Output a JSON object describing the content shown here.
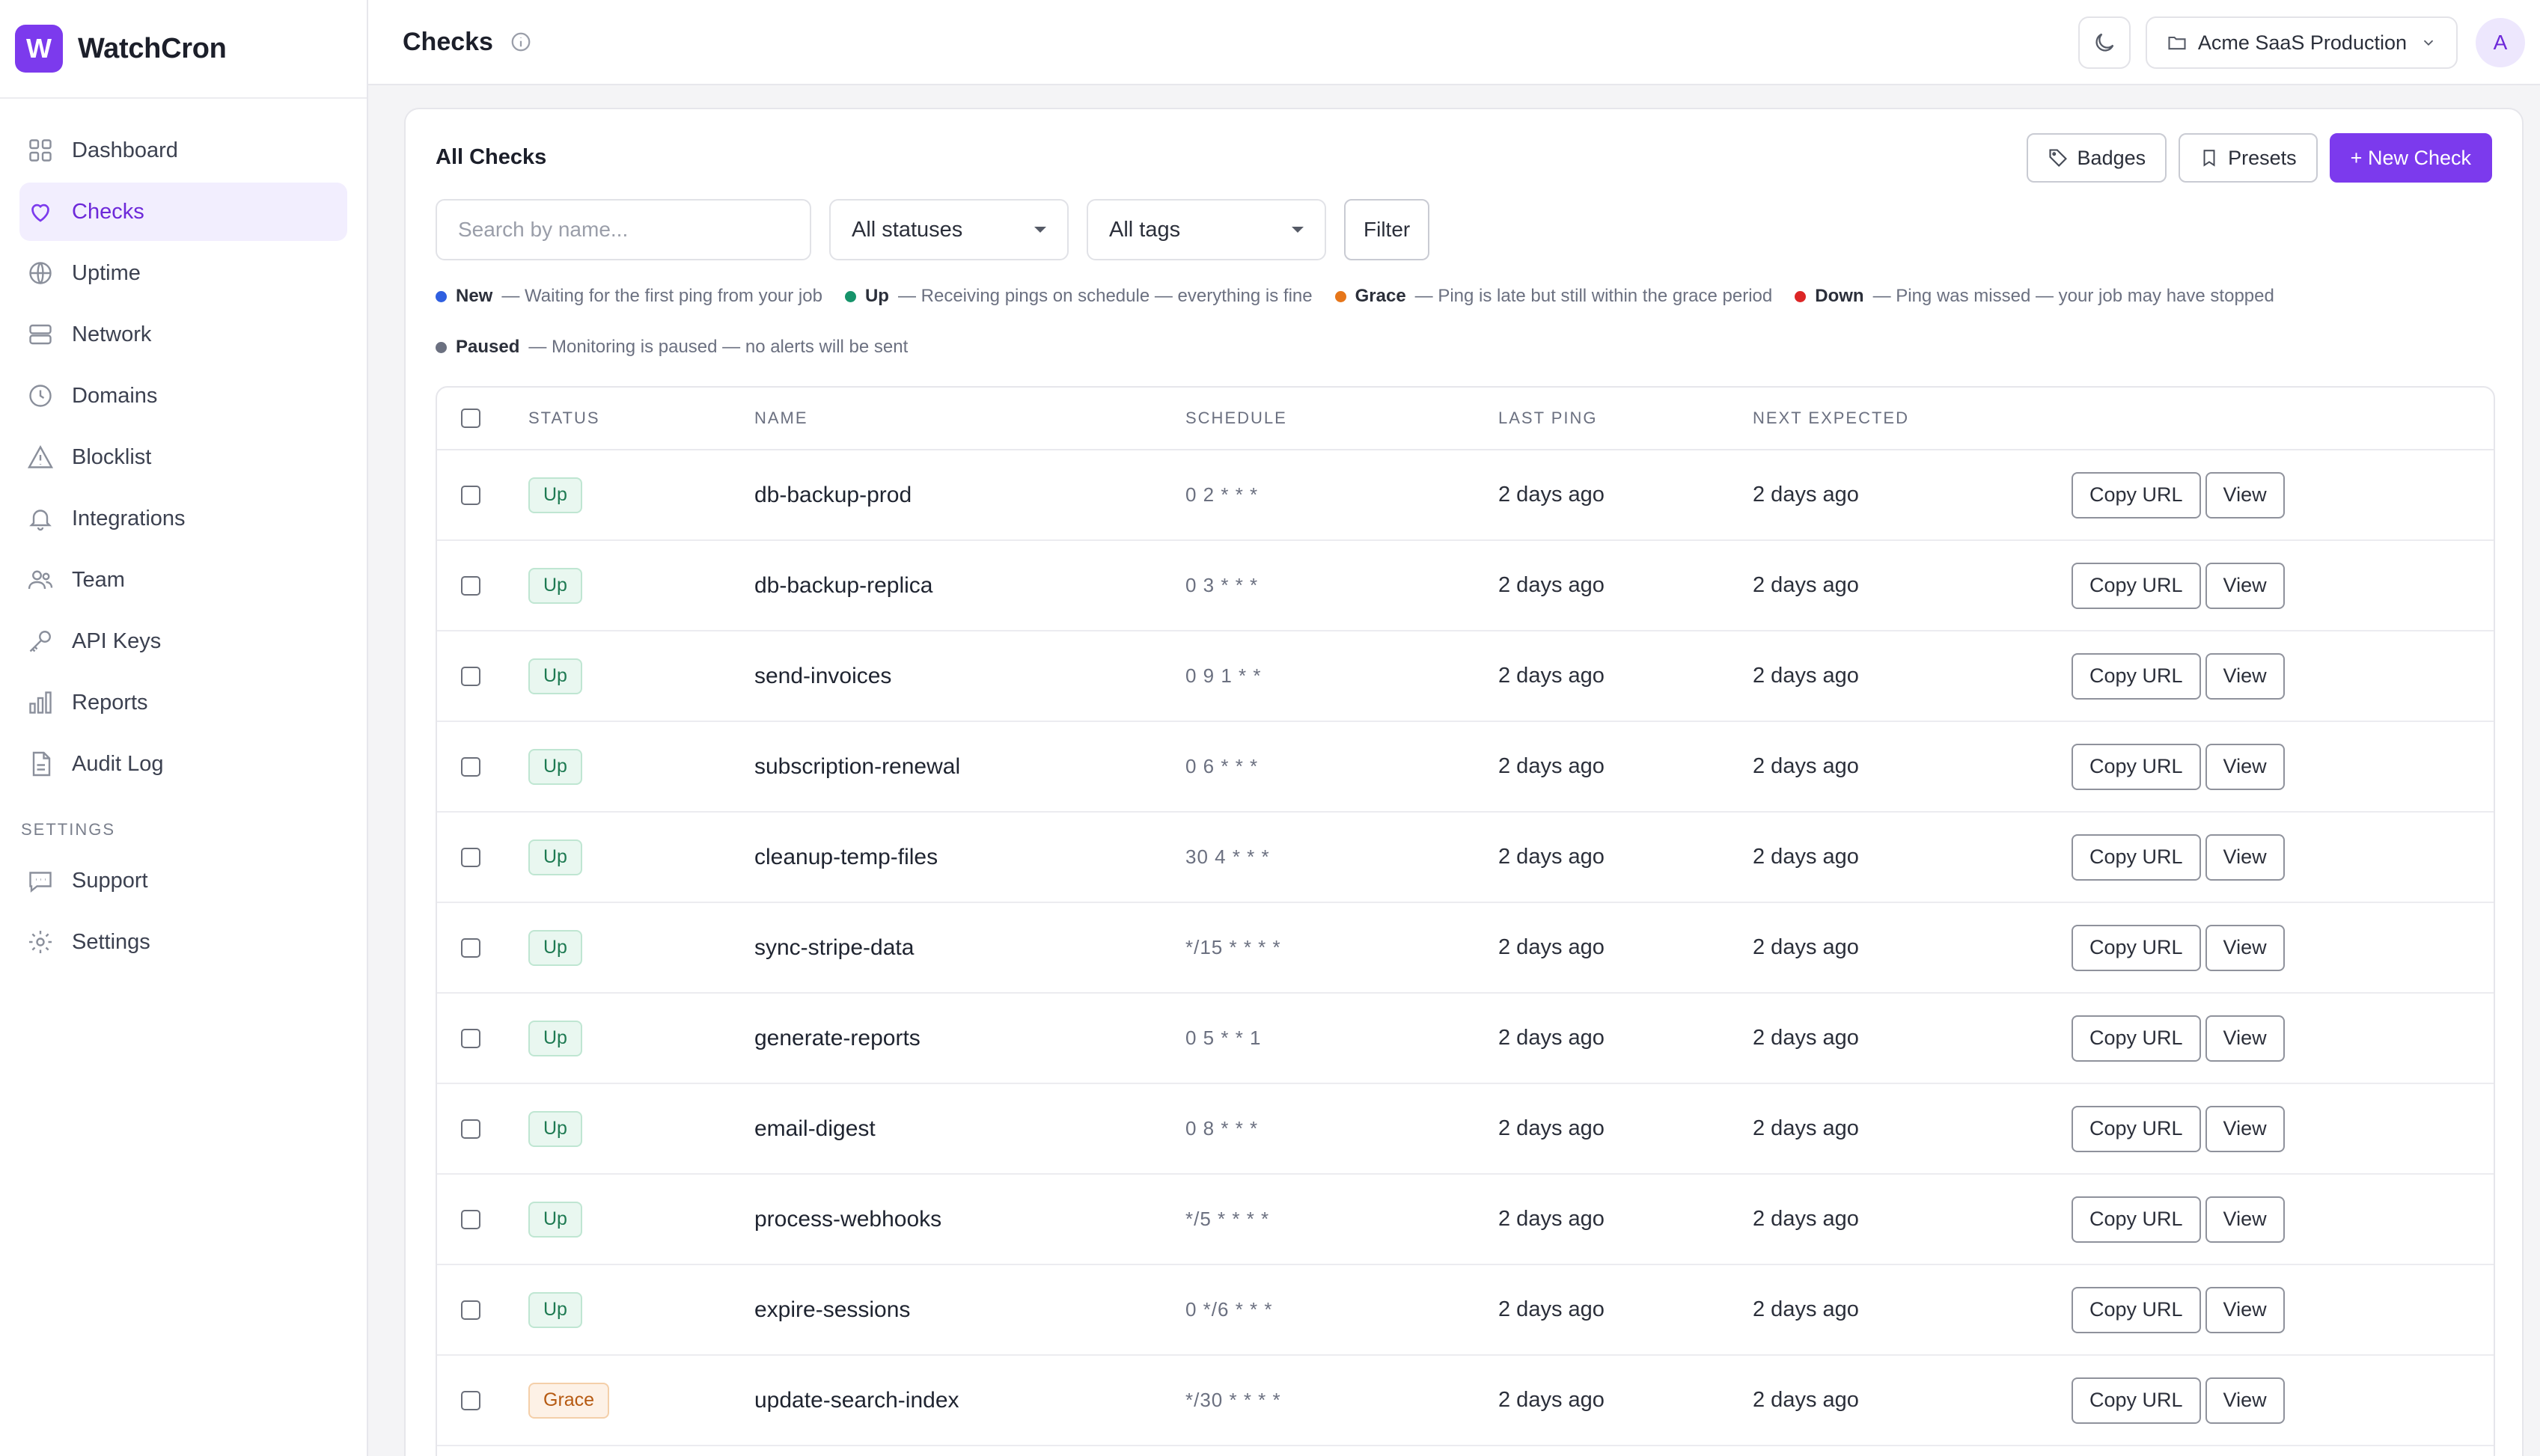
{
  "app": {
    "logo_letter": "W",
    "name": "WatchCron"
  },
  "sidebar": {
    "items": [
      {
        "label": "Dashboard",
        "icon": "grid-icon"
      },
      {
        "label": "Checks",
        "icon": "heart-icon",
        "active": true
      },
      {
        "label": "Uptime",
        "icon": "globe-icon"
      },
      {
        "label": "Network",
        "icon": "server-icon"
      },
      {
        "label": "Domains",
        "icon": "clock-icon"
      },
      {
        "label": "Blocklist",
        "icon": "warning-icon"
      },
      {
        "label": "Integrations",
        "icon": "bell-icon"
      },
      {
        "label": "Team",
        "icon": "users-icon"
      },
      {
        "label": "API Keys",
        "icon": "key-icon"
      },
      {
        "label": "Reports",
        "icon": "bar-chart-icon"
      },
      {
        "label": "Audit Log",
        "icon": "file-icon"
      }
    ],
    "settings_heading": "SETTINGS",
    "settings_items": [
      {
        "label": "Support",
        "icon": "chat-icon"
      },
      {
        "label": "Settings",
        "icon": "gear-icon"
      }
    ]
  },
  "topbar": {
    "title": "Checks",
    "project": "Acme SaaS Production",
    "avatar": "A"
  },
  "card": {
    "title": "All Checks",
    "badges_label": "Badges",
    "presets_label": "Presets",
    "new_check_label": "+ New Check",
    "search_placeholder": "Search by name...",
    "status_filter": "All statuses",
    "tags_filter": "All tags",
    "filter_label": "Filter"
  },
  "legend": [
    {
      "name": "New",
      "desc": "— Waiting for the first ping from your job",
      "color": "#2f5fe0"
    },
    {
      "name": "Up",
      "desc": "— Receiving pings on schedule — everything is fine",
      "color": "#16936a"
    },
    {
      "name": "Grace",
      "desc": "— Ping is late but still within the grace period",
      "color": "#e6761a"
    },
    {
      "name": "Down",
      "desc": "— Ping was missed — your job may have stopped",
      "color": "#dc2626"
    },
    {
      "name": "Paused",
      "desc": "— Monitoring is paused — no alerts will be sent",
      "color": "#6b7080"
    }
  ],
  "table": {
    "headers": {
      "status": "STATUS",
      "name": "NAME",
      "schedule": "SCHEDULE",
      "last_ping": "LAST PING",
      "next_expected": "NEXT EXPECTED"
    },
    "copy_label": "Copy URL",
    "view_label": "View",
    "rows": [
      {
        "status": "Up",
        "name": "db-backup-prod",
        "schedule": "0 2 * * *",
        "last": "2 days ago",
        "next": "2 days ago"
      },
      {
        "status": "Up",
        "name": "db-backup-replica",
        "schedule": "0 3 * * *",
        "last": "2 days ago",
        "next": "2 days ago"
      },
      {
        "status": "Up",
        "name": "send-invoices",
        "schedule": "0 9 1 * *",
        "last": "2 days ago",
        "next": "2 days ago"
      },
      {
        "status": "Up",
        "name": "subscription-renewal",
        "schedule": "0 6 * * *",
        "last": "2 days ago",
        "next": "2 days ago"
      },
      {
        "status": "Up",
        "name": "cleanup-temp-files",
        "schedule": "30 4 * * *",
        "last": "2 days ago",
        "next": "2 days ago"
      },
      {
        "status": "Up",
        "name": "sync-stripe-data",
        "schedule": "*/15 * * * *",
        "last": "2 days ago",
        "next": "2 days ago"
      },
      {
        "status": "Up",
        "name": "generate-reports",
        "schedule": "0 5 * * 1",
        "last": "2 days ago",
        "next": "2 days ago"
      },
      {
        "status": "Up",
        "name": "email-digest",
        "schedule": "0 8 * * *",
        "last": "2 days ago",
        "next": "2 days ago"
      },
      {
        "status": "Up",
        "name": "process-webhooks",
        "schedule": "*/5 * * * *",
        "last": "2 days ago",
        "next": "2 days ago"
      },
      {
        "status": "Up",
        "name": "expire-sessions",
        "schedule": "0 */6 * * *",
        "last": "2 days ago",
        "next": "2 days ago"
      },
      {
        "status": "Grace",
        "name": "update-search-index",
        "schedule": "*/30 * * * *",
        "last": "2 days ago",
        "next": "2 days ago"
      }
    ]
  }
}
